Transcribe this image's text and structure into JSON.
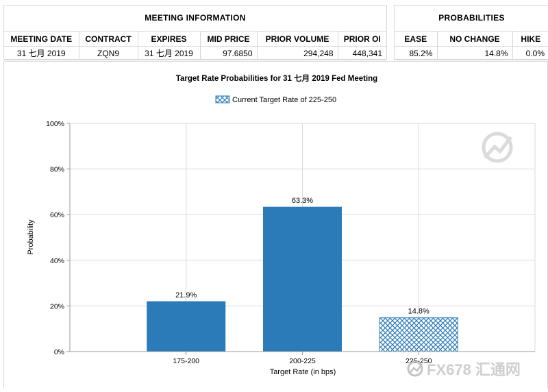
{
  "meeting_info": {
    "title": "MEETING INFORMATION",
    "headers": [
      "MEETING DATE",
      "CONTRACT",
      "EXPIRES",
      "MID PRICE",
      "PRIOR VOLUME",
      "PRIOR OI"
    ],
    "row": [
      "31 七月 2019",
      "ZQN9",
      "31 七月 2019",
      "97.6850",
      "294,248",
      "448,341"
    ]
  },
  "probabilities": {
    "title": "PROBABILITIES",
    "headers": [
      "EASE",
      "NO CHANGE",
      "HIKE"
    ],
    "row": [
      "85.2%",
      "14.8%",
      "0.0%"
    ]
  },
  "watermark": {
    "text": "FX678 汇通网"
  },
  "chart_data": {
    "type": "bar",
    "title": "Target Rate Probabilities for 31 七月 2019 Fed Meeting",
    "legend": {
      "label": "Current Target Rate of 225-250",
      "position": "top-center"
    },
    "xlabel": "Target Rate (in bps)",
    "ylabel": "Probability",
    "categories": [
      "175-200",
      "200-225",
      "225-250"
    ],
    "values": [
      21.9,
      63.3,
      14.8
    ],
    "data_labels": [
      "21.9%",
      "63.3%",
      "14.8%"
    ],
    "current_category": "225-250",
    "ylim": [
      0,
      100
    ],
    "yticks": [
      "0%",
      "20%",
      "40%",
      "60%",
      "80%",
      "100%"
    ],
    "grid": true,
    "colors": {
      "bar": "#2b7bb9",
      "current_pattern_line": "#2b7bb9",
      "grid": "#d9d9d9"
    }
  }
}
